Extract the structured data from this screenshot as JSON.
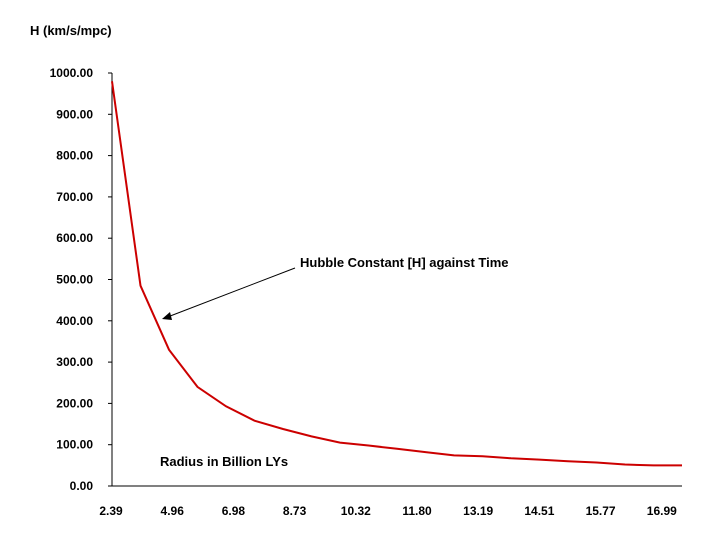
{
  "chart_data": {
    "type": "line",
    "ylabel": "H (km/s/mpc)",
    "xlabel": "Radius in Billion LYs",
    "annotation": "Hubble Constant [H] against Time",
    "ylim": [
      0,
      1000
    ],
    "y_ticks": [
      "0.00",
      "100.00",
      "200.00",
      "300.00",
      "400.00",
      "500.00",
      "600.00",
      "700.00",
      "800.00",
      "900.00",
      "1000.00"
    ],
    "x_ticks": [
      "2.39",
      "4.96",
      "6.98",
      "8.73",
      "10.32",
      "11.80",
      "13.19",
      "14.51",
      "15.77",
      "16.99"
    ],
    "line_color": "#cc0000",
    "series": [
      {
        "values": [
          980,
          485,
          330,
          240,
          193,
          158,
          138,
          120,
          105,
          98,
          90,
          82,
          74,
          72,
          67,
          64,
          60,
          57,
          52,
          50,
          50
        ]
      }
    ]
  }
}
